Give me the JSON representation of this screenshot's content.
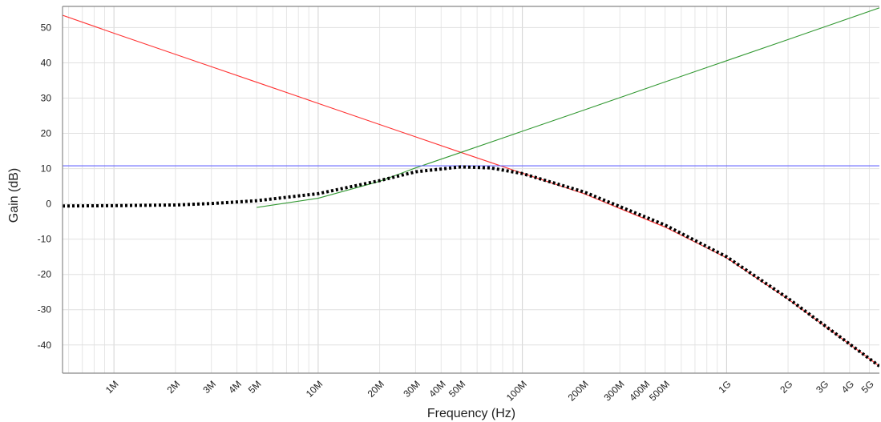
{
  "chart_data": {
    "type": "line",
    "title": "",
    "xlabel": "Frequency (Hz)",
    "ylabel": "Gain (dB)",
    "x_scale": "log",
    "xlim": [
      560000,
      5600000000
    ],
    "ylim": [
      -48,
      56
    ],
    "grid": true,
    "x_ticks": [
      {
        "value": 1000000,
        "label": "1M"
      },
      {
        "value": 2000000,
        "label": "2M"
      },
      {
        "value": 3000000,
        "label": "3M"
      },
      {
        "value": 4000000,
        "label": "4M"
      },
      {
        "value": 5000000,
        "label": "5M"
      },
      {
        "value": 10000000,
        "label": "10M"
      },
      {
        "value": 20000000,
        "label": "20M"
      },
      {
        "value": 30000000,
        "label": "30M"
      },
      {
        "value": 40000000,
        "label": "40M"
      },
      {
        "value": 50000000,
        "label": "50M"
      },
      {
        "value": 100000000,
        "label": "100M"
      },
      {
        "value": 200000000,
        "label": "200M"
      },
      {
        "value": 300000000,
        "label": "300M"
      },
      {
        "value": 400000000,
        "label": "400M"
      },
      {
        "value": 500000000,
        "label": "500M"
      },
      {
        "value": 1000000000,
        "label": "1G"
      },
      {
        "value": 2000000000,
        "label": "2G"
      },
      {
        "value": 3000000000,
        "label": "3G"
      },
      {
        "value": 4000000000,
        "label": "4G"
      },
      {
        "value": 5000000000,
        "label": "5G"
      }
    ],
    "y_ticks": [
      {
        "value": 50,
        "label": "50"
      },
      {
        "value": 40,
        "label": "40"
      },
      {
        "value": 30,
        "label": "30"
      },
      {
        "value": 20,
        "label": "20"
      },
      {
        "value": 10,
        "label": "10"
      },
      {
        "value": 0,
        "label": "0"
      },
      {
        "value": -10,
        "label": "-10"
      },
      {
        "value": -20,
        "label": "-20"
      },
      {
        "value": -30,
        "label": "-30"
      },
      {
        "value": -40,
        "label": "-40"
      }
    ],
    "series": [
      {
        "color": "#ff3333",
        "style": "solid",
        "x": [
          560000,
          1000000,
          2000000,
          5000000,
          10000000,
          20000000,
          50000000,
          80000000,
          100000000,
          200000000,
          500000000,
          1000000000,
          2000000000,
          5600000000
        ],
        "y": [
          53.5,
          48.4,
          42.4,
          34.5,
          28.5,
          22.5,
          14.6,
          10.6,
          8.7,
          2.9,
          -6.6,
          -15.3,
          -27.0,
          -46.0
        ]
      },
      {
        "color": "#339933",
        "style": "solid",
        "x": [
          5000000,
          10000000,
          20000000,
          30000000,
          50000000,
          100000000,
          200000000,
          500000000,
          1000000000,
          2000000000,
          5600000000
        ],
        "y": [
          -1.0,
          1.6,
          6.4,
          10.2,
          14.6,
          20.6,
          26.6,
          34.6,
          40.6,
          46.6,
          55.6
        ]
      },
      {
        "color": "#6666ff",
        "style": "solid",
        "x": [
          560000,
          5600000000
        ],
        "y": [
          10.8,
          10.8
        ]
      },
      {
        "color": "#000000",
        "style": "dotted",
        "x": [
          560000,
          1000000,
          2000000,
          3000000,
          5000000,
          10000000,
          20000000,
          30000000,
          50000000,
          70000000,
          100000000,
          200000000,
          500000000,
          1000000000,
          2000000000,
          5600000000
        ],
        "y": [
          -0.6,
          -0.5,
          -0.3,
          0.1,
          0.9,
          2.9,
          6.6,
          9.1,
          10.5,
          10.2,
          8.6,
          3.4,
          -6.0,
          -15.0,
          -26.8,
          -46.0
        ]
      }
    ]
  }
}
